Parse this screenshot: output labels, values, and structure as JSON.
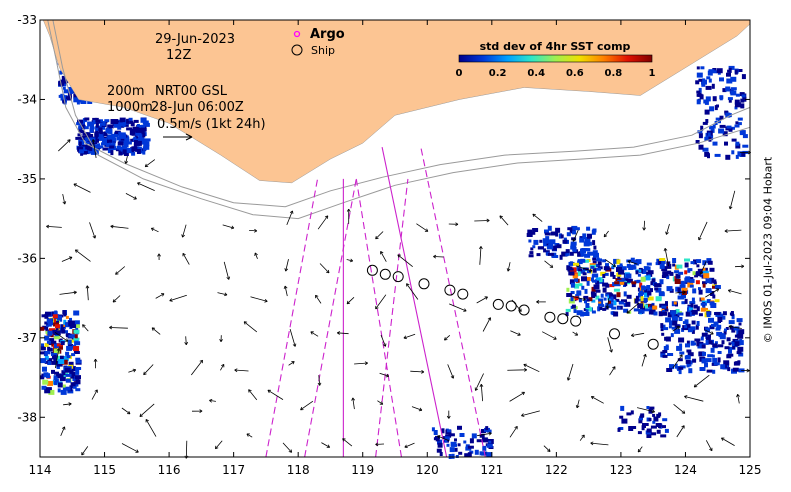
{
  "map": {
    "lon_range": [
      114,
      125
    ],
    "lat_range": [
      -38.5,
      -33
    ],
    "x_ticks": [
      "114",
      "115",
      "116",
      "117",
      "118",
      "119",
      "120",
      "121",
      "122",
      "123",
      "124",
      "125"
    ],
    "y_ticks": [
      "-33",
      "-34",
      "-35",
      "-36",
      "-37",
      "-38"
    ],
    "land_color": "#fcc593",
    "contour_color": "#9a9a9a",
    "track_color": "#cc22cc"
  },
  "annotations": {
    "date": "29-Jun-2023",
    "hour": "12Z",
    "depth_200": "200m",
    "depth_1000": "1000m",
    "product": "NRT00 GSL",
    "product_time": "28-Jun 06:00Z",
    "scale_vector": "0.5m/s (1kt 24h)"
  },
  "legend": {
    "argo_label": "Argo",
    "argo_color": "#ff00ff",
    "ship_label": "Ship"
  },
  "colorbar": {
    "title": "std dev of 4hr SST comp",
    "ticks": [
      "0",
      "0.2",
      "0.4",
      "0.6",
      "0.8",
      "1"
    ],
    "colors": [
      "#00008c",
      "#0038d8",
      "#00a0ff",
      "#2ee6c8",
      "#a0f050",
      "#f0e000",
      "#ff8000",
      "#e01000",
      "#800000"
    ]
  },
  "ship_positions": [
    [
      119.15,
      -36.15
    ],
    [
      119.35,
      -36.2
    ],
    [
      119.55,
      -36.23
    ],
    [
      119.95,
      -36.32
    ],
    [
      120.35,
      -36.4
    ],
    [
      120.55,
      -36.45
    ],
    [
      121.1,
      -36.58
    ],
    [
      121.3,
      -36.6
    ],
    [
      121.5,
      -36.65
    ],
    [
      121.9,
      -36.74
    ],
    [
      122.1,
      -36.76
    ],
    [
      122.3,
      -36.79
    ],
    [
      122.9,
      -36.95
    ],
    [
      123.5,
      -37.08
    ]
  ],
  "credit": "© IMOS 01-Jul-2023 09:04 Hobart"
}
